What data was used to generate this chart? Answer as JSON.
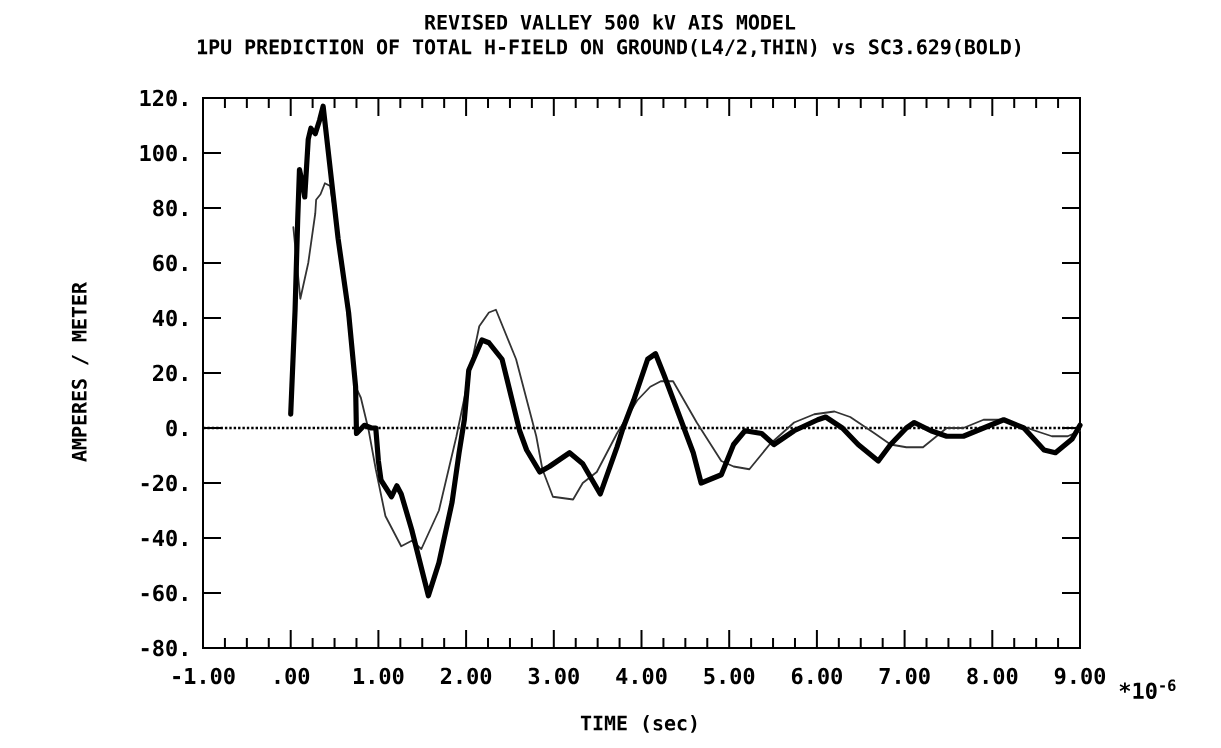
{
  "chart_data": {
    "type": "line",
    "title": "REVISED VALLEY 500 kV AIS MODEL",
    "subtitle": "1PU PREDICTION OF TOTAL H-FIELD ON GROUND(L4/2,THIN) vs SC3.629(BOLD)",
    "xlabel": "TIME (sec)",
    "ylabel": "AMPERES / METER",
    "annotations": [
      "*10$^{-6}$"
    ],
    "xlim": [
      -1,
      9
    ],
    "ylim": [
      -80,
      120
    ],
    "xticks": [
      {
        "value": -1,
        "label": "-1.00"
      },
      {
        "value": 0,
        "label": ".00"
      },
      {
        "value": 1,
        "label": "1.00"
      },
      {
        "value": 2,
        "label": "2.00"
      },
      {
        "value": 3,
        "label": "3.00"
      },
      {
        "value": 4,
        "label": "4.00"
      },
      {
        "value": 5,
        "label": "5.00"
      },
      {
        "value": 6,
        "label": "6.00"
      },
      {
        "value": 7,
        "label": "7.00"
      },
      {
        "value": 8,
        "label": "8.00"
      },
      {
        "value": 9,
        "label": "9.00"
      }
    ],
    "yticks": [
      {
        "value": -80,
        "label": "-80."
      },
      {
        "value": -60,
        "label": "-60."
      },
      {
        "value": -40,
        "label": "-40."
      },
      {
        "value": -20,
        "label": "-20."
      },
      {
        "value": 0,
        "label": "0."
      },
      {
        "value": 20,
        "label": "20."
      },
      {
        "value": 40,
        "label": "40."
      },
      {
        "value": 60,
        "label": "60."
      },
      {
        "value": 80,
        "label": "80."
      },
      {
        "value": 100,
        "label": "100."
      },
      {
        "value": 120,
        "label": "120."
      }
    ],
    "ref_lines": [
      {
        "axis": "y",
        "value": 0,
        "line_style": "dotted",
        "color": "#000000"
      }
    ],
    "series": [
      {
        "color": "#333333",
        "x": [
          0.03,
          0.11,
          0.2,
          0.28,
          0.29,
          0.34,
          0.39,
          0.45,
          0.57,
          0.74,
          0.8,
          0.89,
          0.97,
          1.08,
          1.26,
          1.38,
          1.49,
          1.69,
          1.89,
          2.15,
          2.26,
          2.34,
          2.57,
          2.8,
          2.87,
          2.99,
          3.22,
          3.33,
          3.49,
          3.72,
          3.95,
          4.1,
          4.22,
          4.36,
          4.63,
          4.91,
          5.05,
          5.23,
          5.46,
          5.74,
          5.97,
          6.2,
          6.38,
          6.66,
          6.84,
          7.02,
          7.21,
          7.48,
          7.67,
          7.9,
          8.13,
          8.49,
          8.68,
          8.86,
          9.0
        ],
        "values": [
          73,
          47,
          60,
          78,
          83,
          85,
          89,
          88,
          64,
          15,
          11,
          -1,
          -15,
          -32,
          -43,
          -41,
          -44,
          -30,
          -3,
          37,
          42,
          43,
          25,
          -3,
          -15,
          -25,
          -26,
          -20,
          -16,
          -2,
          10,
          15,
          17,
          17,
          2,
          -12,
          -14,
          -15,
          -6,
          2,
          5,
          6,
          4,
          -2,
          -6,
          -7,
          -7,
          0,
          0,
          3,
          3,
          -1,
          -3,
          -3,
          -1
        ]
      },
      {
        "color": "#000000",
        "x": [
          0.0,
          0.05,
          0.08,
          0.1,
          0.14,
          0.16,
          0.2,
          0.23,
          0.28,
          0.33,
          0.37,
          0.43,
          0.54,
          0.66,
          0.74,
          0.75,
          0.84,
          0.92,
          0.97,
          1.0,
          1.03,
          1.15,
          1.21,
          1.26,
          1.38,
          1.57,
          1.69,
          1.84,
          1.92,
          1.98,
          2.03,
          2.18,
          2.26,
          2.41,
          2.61,
          2.69,
          2.84,
          2.95,
          3.18,
          3.33,
          3.53,
          3.72,
          3.79,
          3.91,
          4.07,
          4.16,
          4.26,
          4.59,
          4.68,
          4.91,
          5.05,
          5.18,
          5.37,
          5.51,
          5.74,
          6.01,
          6.1,
          6.29,
          6.47,
          6.7,
          6.84,
          7.02,
          7.11,
          7.3,
          7.48,
          7.67,
          7.9,
          8.13,
          8.36,
          8.59,
          8.72,
          8.91,
          9.0
        ],
        "values": [
          5,
          43,
          76,
          94,
          88,
          84,
          105,
          109,
          107,
          112,
          117,
          100,
          69,
          42,
          15,
          -2,
          1,
          0,
          0,
          -12,
          -19,
          -25,
          -21,
          -24,
          -37,
          -61,
          -49,
          -27,
          -9,
          3,
          21,
          32,
          31,
          25,
          -1,
          -8,
          -16,
          -14,
          -9,
          -13,
          -24,
          -7,
          0,
          10,
          25,
          27,
          19,
          -9,
          -20,
          -17,
          -6,
          -1,
          -2,
          -6,
          -1,
          3,
          4,
          0,
          -6,
          -12,
          -6,
          0,
          2,
          -1,
          -3,
          -3,
          0,
          3,
          0,
          -8,
          -9,
          -4,
          1
        ]
      }
    ]
  }
}
